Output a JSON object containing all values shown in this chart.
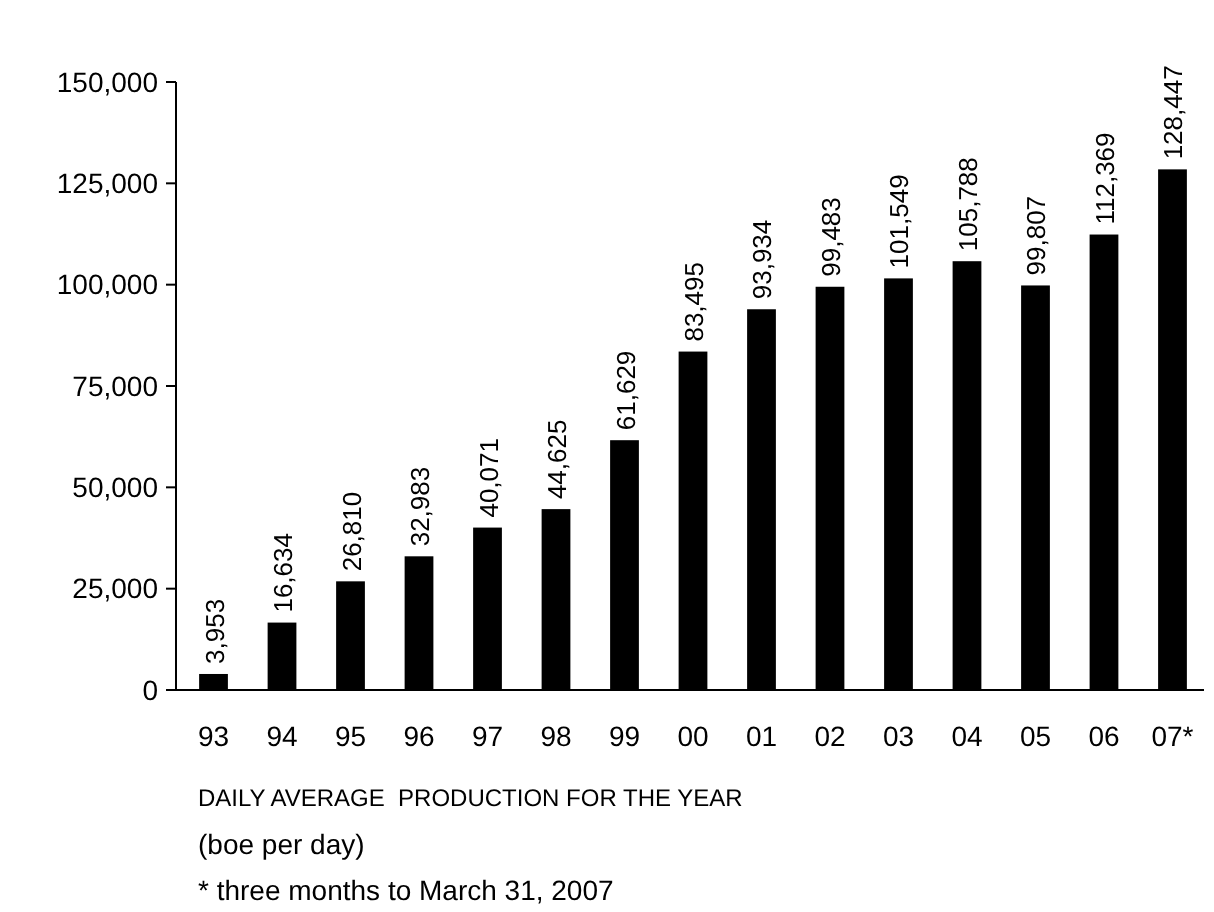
{
  "chart_data": {
    "type": "bar",
    "categories": [
      "93",
      "94",
      "95",
      "96",
      "97",
      "98",
      "99",
      "00",
      "01",
      "02",
      "03",
      "04",
      "05",
      "06",
      "07*"
    ],
    "values": [
      3953,
      16634,
      26810,
      32983,
      40071,
      44625,
      61629,
      83495,
      93934,
      99483,
      101549,
      105788,
      99807,
      112369,
      128447
    ],
    "color": "#000000",
    "ylim": [
      0,
      150000
    ],
    "yticks": [
      {
        "value": 0,
        "label": "0"
      },
      {
        "value": 25000,
        "label": "25,000"
      },
      {
        "value": 50000,
        "label": "50,000"
      },
      {
        "value": 75000,
        "label": "75,000"
      },
      {
        "value": 100000,
        "label": "100,000"
      },
      {
        "value": 125000,
        "label": "125,000"
      },
      {
        "value": 150000,
        "label": "150,000"
      }
    ],
    "xlabel": "DAILY AVERAGE  PRODUCTION FOR THE YEAR",
    "annotations": [
      "(boe per day)",
      "* three months to March 31, 2007"
    ],
    "value_labels": [
      "3,953",
      "16,634",
      "26,810",
      "32,983",
      "40,071",
      "44,625",
      "61,629",
      "83,495",
      "93,934",
      "99,483",
      "101,549",
      "105,788",
      "99,807",
      "112,369",
      "128,447"
    ],
    "grid": false
  }
}
